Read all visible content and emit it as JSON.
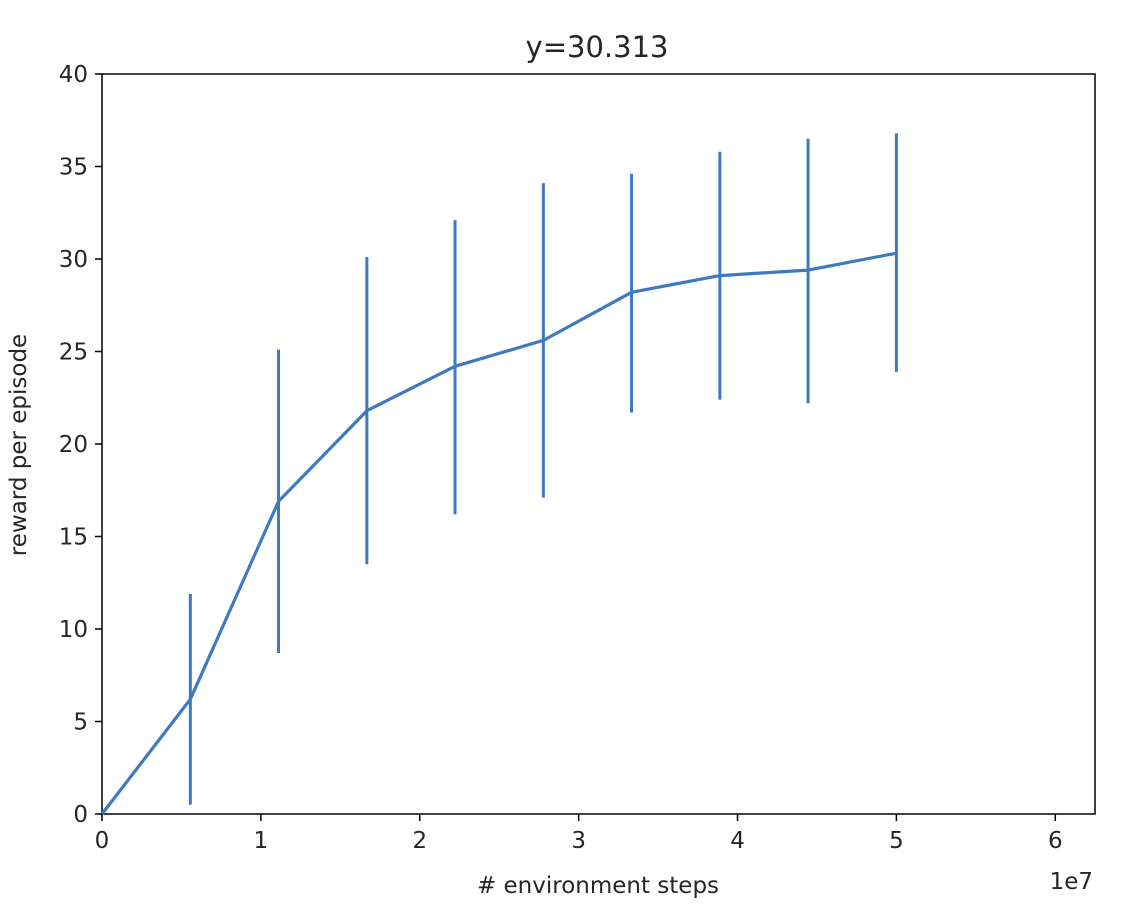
{
  "chart_data": {
    "type": "line",
    "title": "y=30.313",
    "xlabel": "# environment steps",
    "ylabel": "reward per episode",
    "x_offset_text": "1e7",
    "xlim": [
      0,
      6.25
    ],
    "ylim": [
      0,
      40
    ],
    "grid": false,
    "x_ticks": [
      0,
      1,
      2,
      3,
      4,
      5,
      6
    ],
    "x_tick_labels": [
      "0",
      "1",
      "2",
      "3",
      "4",
      "5",
      "6"
    ],
    "y_ticks": [
      0,
      5,
      10,
      15,
      20,
      25,
      30,
      35,
      40
    ],
    "y_tick_labels": [
      "0",
      "5",
      "10",
      "15",
      "20",
      "25",
      "30",
      "35",
      "40"
    ],
    "line_color": "#3d7abf",
    "series": [
      {
        "x": [
          0,
          0.556,
          1.111,
          1.667,
          2.222,
          2.778,
          3.333,
          3.889,
          4.444,
          5.0
        ],
        "y": [
          0,
          6.2,
          16.9,
          21.8,
          24.2,
          25.6,
          28.2,
          29.1,
          29.4,
          30.313
        ],
        "y_err_low": [
          null,
          0.5,
          8.7,
          13.5,
          16.2,
          17.1,
          21.7,
          22.4,
          22.2,
          23.9
        ],
        "y_err_high": [
          null,
          11.9,
          25.1,
          30.1,
          32.1,
          34.1,
          34.6,
          35.8,
          36.5,
          36.8
        ]
      }
    ]
  }
}
